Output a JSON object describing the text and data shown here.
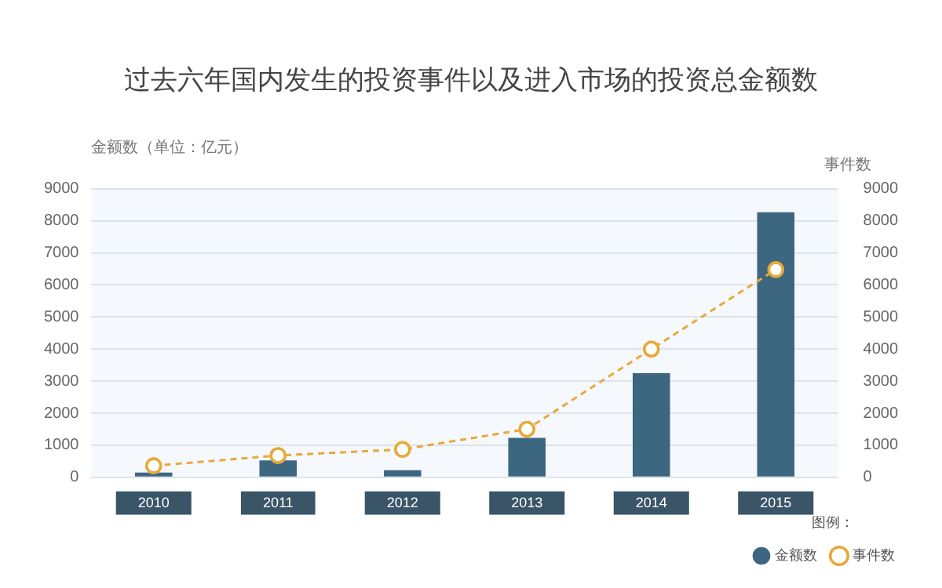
{
  "chart_data": {
    "type": "bar",
    "title": "过去六年国内发生的投资事件以及进入市场的投资总金额数",
    "ylabel": "金额数（单位：亿元）",
    "y2label": "事件数",
    "legend_title": "图例：",
    "categories": [
      "2010",
      "2011",
      "2012",
      "2013",
      "2014",
      "2015"
    ],
    "series": [
      {
        "name": "金额数",
        "color": "#3d6680",
        "values": [
          150,
          530,
          220,
          1230,
          3250,
          8270
        ]
      },
      {
        "name": "事件数",
        "type": "line",
        "axis": "y2",
        "color": "#e8a93a",
        "line_style": "dashed",
        "marker": "circle",
        "values": [
          360,
          680,
          870,
          1500,
          4000,
          6480
        ]
      }
    ],
    "ylim": [
      0,
      9000
    ],
    "yticks": [
      0,
      1000,
      2000,
      3000,
      4000,
      5000,
      6000,
      7000,
      8000,
      9000
    ],
    "y2lim": [
      0,
      9000
    ],
    "y2ticks": [
      0,
      1000,
      2000,
      3000,
      4000,
      5000,
      6000,
      7000,
      8000,
      9000
    ],
    "grid": "y",
    "legend": "bottom right"
  }
}
